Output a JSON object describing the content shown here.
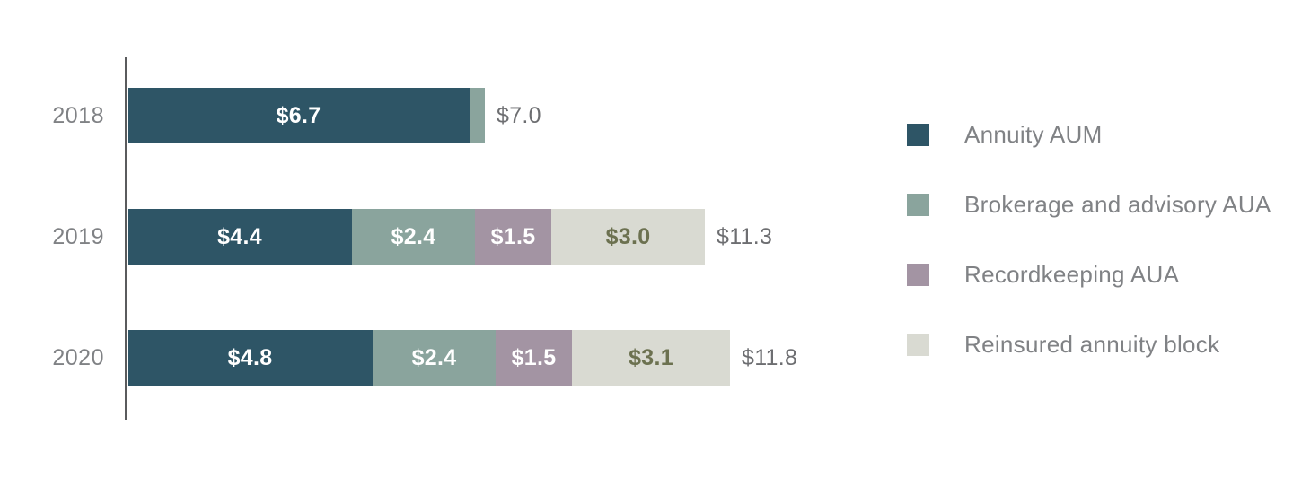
{
  "chart_data": {
    "type": "bar",
    "variant": "horizontal-stacked",
    "title": "",
    "xlabel": "",
    "ylabel": "",
    "grid": false,
    "legend_position": "right",
    "categories": [
      "2018",
      "2019",
      "2020"
    ],
    "series": [
      {
        "name": "Annuity AUM",
        "color": "#2E5566",
        "label_color": "#FFFFFF",
        "values": [
          6.7,
          4.4,
          4.8
        ],
        "labels": [
          "$6.7",
          "$4.4",
          "$4.8"
        ]
      },
      {
        "name": "Brokerage and advisory AUA",
        "color": "#8AA49D",
        "label_color": "#FFFFFF",
        "values": [
          0.3,
          2.4,
          2.4
        ],
        "labels": [
          null,
          "$2.4",
          "$2.4"
        ]
      },
      {
        "name": "Recordkeeping AUA",
        "color": "#A394A3",
        "label_color": "#FFFFFF",
        "values": [
          0,
          1.5,
          1.5
        ],
        "labels": [
          null,
          "$1.5",
          "$1.5"
        ]
      },
      {
        "name": "Reinsured annuity block",
        "color": "#D9DAD2",
        "label_color": "#6C7150",
        "values": [
          0,
          3.0,
          3.1
        ],
        "labels": [
          null,
          "$3.0",
          "$3.1"
        ]
      }
    ],
    "totals": {
      "values": [
        7.0,
        11.3,
        11.8
      ],
      "labels": [
        "$7.0",
        "$11.3",
        "$11.8"
      ]
    },
    "xlim": [
      0,
      12.6
    ]
  },
  "colors": {
    "background": "#FFFFFF",
    "axis_line": "#5A5B5D",
    "category_text": "#808285",
    "total_text": "#6D6E71",
    "legend_text": "#808285"
  }
}
